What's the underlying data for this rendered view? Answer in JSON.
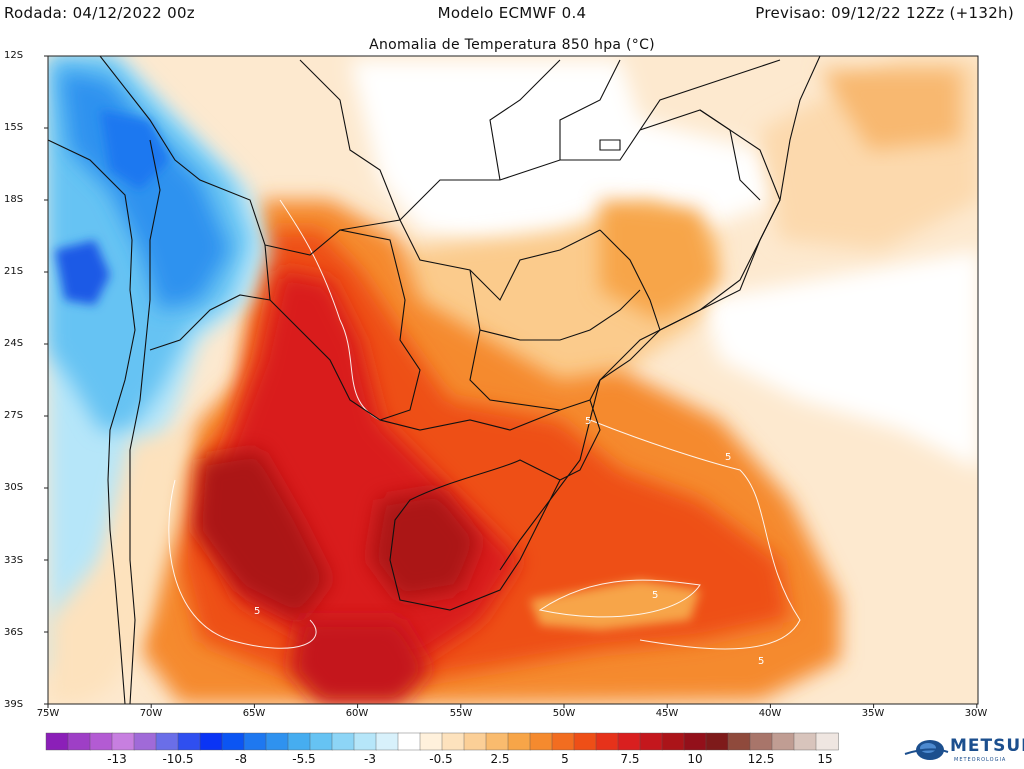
{
  "header": {
    "run": "Rodada: 04/12/2022 00z",
    "model": "Modelo ECMWF 0.4",
    "forecast": "Previsao: 09/12/22 12Zz (+132h)"
  },
  "map": {
    "title": "Anomalia de Temperatura 850 hpa (°C)",
    "lat_labels": [
      "12S",
      "15S",
      "18S",
      "21S",
      "24S",
      "27S",
      "30S",
      "33S",
      "36S",
      "39S"
    ],
    "lon_labels": [
      "75W",
      "70W",
      "65W",
      "60W",
      "55W",
      "50W",
      "45W",
      "40W",
      "35W",
      "30W"
    ],
    "contour_labels": [
      "5",
      "5",
      "5",
      "5",
      "5"
    ]
  },
  "colorbar": {
    "labels": [
      "-13",
      "-10.5",
      "-8",
      "-5.5",
      "-3",
      "-0.5",
      "2.5",
      "5",
      "7.5",
      "10",
      "12.5",
      "15"
    ],
    "colors": [
      "#8b1fb8",
      "#9e3fc6",
      "#b35bd3",
      "#c77fe0",
      "#a06ad8",
      "#6a6ee8",
      "#2f4ff0",
      "#0a34f5",
      "#0b55f3",
      "#1e78f0",
      "#2f92ef",
      "#46adf0",
      "#66c3f3",
      "#8dd5f6",
      "#b6e6f9",
      "#d8f1fb",
      "#ffffff",
      "#fff1dc",
      "#fde2bd",
      "#fbcf97",
      "#f9bb6e",
      "#f7a548",
      "#f58a2e",
      "#f26d20",
      "#ee4f17",
      "#e6321a",
      "#d91f1f",
      "#c4171d",
      "#ab1419",
      "#93101a",
      "#7e1a1a",
      "#8f4a3c",
      "#a8756a",
      "#c09d93",
      "#d8c4bc",
      "#efe6e1"
    ]
  },
  "branding": {
    "logo_text": "METSUL",
    "logo_subtext": "METEOROLOGIA"
  }
}
